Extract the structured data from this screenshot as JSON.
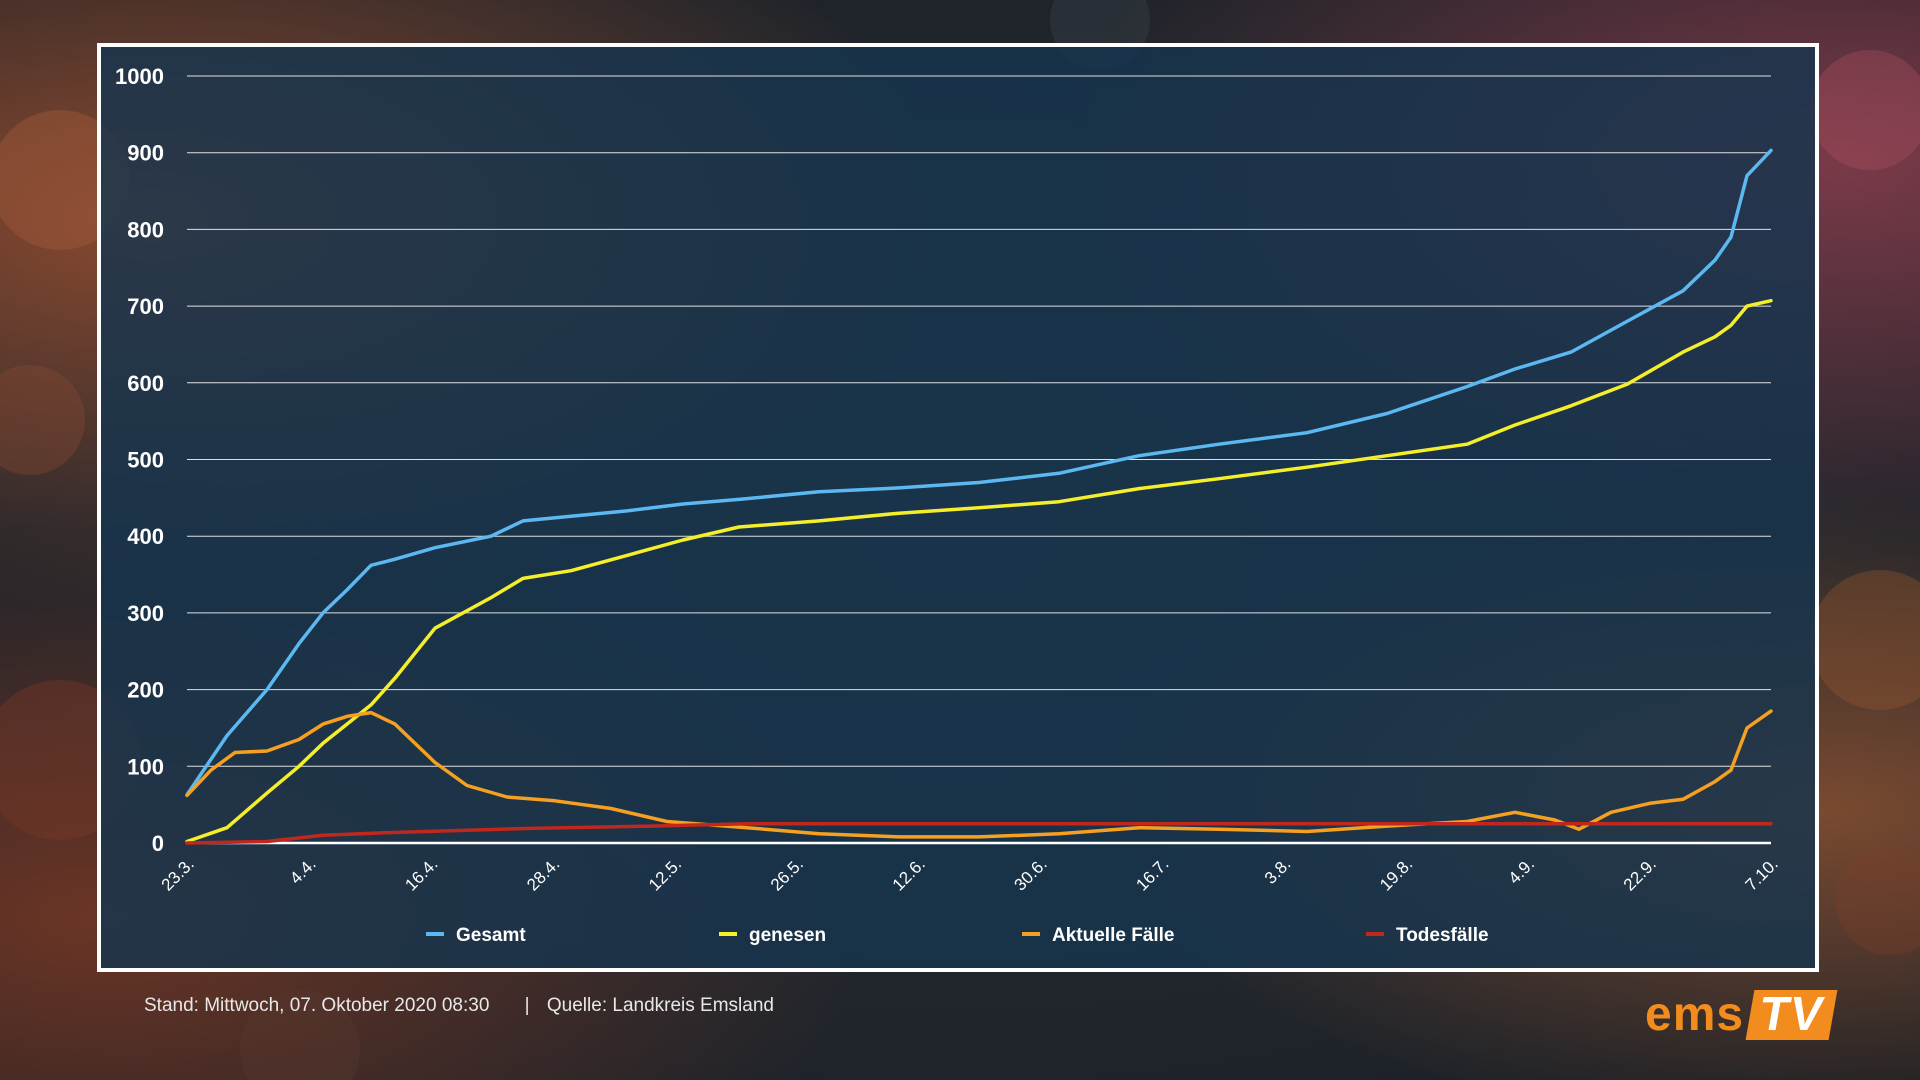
{
  "chart_data": {
    "type": "line",
    "title": "",
    "xlabel": "",
    "ylabel": "",
    "ylim": [
      0,
      1000
    ],
    "yticks": [
      0,
      100,
      200,
      300,
      400,
      500,
      600,
      700,
      800,
      900,
      1000
    ],
    "xtick_labels": [
      "23.3.",
      "4.4.",
      "16.4.",
      "28.4.",
      "12.5.",
      "26.5.",
      "12.6.",
      "30.6.",
      "16.7.",
      "3.8.",
      "19.8.",
      "4.9.",
      "22.9.",
      "7.10."
    ],
    "x_start": "2020-03-23",
    "x_end": "2020-10-07",
    "grid": true,
    "legend_position": "bottom",
    "series": [
      {
        "name": "Gesamt",
        "color": "#5bb8f0",
        "x": [
          "2020-03-23",
          "2020-03-28",
          "2020-04-02",
          "2020-04-06",
          "2020-04-09",
          "2020-04-12",
          "2020-04-15",
          "2020-04-18",
          "2020-04-23",
          "2020-04-30",
          "2020-05-04",
          "2020-05-10",
          "2020-05-17",
          "2020-05-24",
          "2020-05-31",
          "2020-06-10",
          "2020-06-20",
          "2020-06-30",
          "2020-07-10",
          "2020-07-20",
          "2020-07-30",
          "2020-08-10",
          "2020-08-20",
          "2020-08-30",
          "2020-09-05",
          "2020-09-12",
          "2020-09-19",
          "2020-09-26",
          "2020-09-30",
          "2020-10-02",
          "2020-10-04",
          "2020-10-07"
        ],
        "values": [
          63,
          140,
          200,
          260,
          300,
          330,
          362,
          370,
          385,
          400,
          420,
          426,
          433,
          442,
          448,
          458,
          463,
          470,
          482,
          505,
          520,
          535,
          560,
          595,
          618,
          640,
          680,
          720,
          760,
          790,
          870,
          903
        ]
      },
      {
        "name": "genesen",
        "color": "#f5ee2a",
        "x": [
          "2020-03-23",
          "2020-03-28",
          "2020-04-02",
          "2020-04-06",
          "2020-04-09",
          "2020-04-12",
          "2020-04-15",
          "2020-04-18",
          "2020-04-23",
          "2020-04-30",
          "2020-05-04",
          "2020-05-10",
          "2020-05-17",
          "2020-05-24",
          "2020-05-31",
          "2020-06-10",
          "2020-06-20",
          "2020-06-30",
          "2020-07-10",
          "2020-07-20",
          "2020-07-30",
          "2020-08-10",
          "2020-08-20",
          "2020-08-30",
          "2020-09-05",
          "2020-09-12",
          "2020-09-19",
          "2020-09-26",
          "2020-09-30",
          "2020-10-02",
          "2020-10-04",
          "2020-10-07"
        ],
        "values": [
          2,
          20,
          65,
          100,
          130,
          155,
          180,
          215,
          280,
          320,
          345,
          355,
          375,
          395,
          412,
          420,
          430,
          437,
          445,
          462,
          475,
          490,
          505,
          520,
          545,
          570,
          598,
          640,
          660,
          675,
          700,
          707
        ]
      },
      {
        "name": "Aktuelle Fälle",
        "color": "#f5a020",
        "x": [
          "2020-03-23",
          "2020-03-26",
          "2020-03-29",
          "2020-04-02",
          "2020-04-06",
          "2020-04-09",
          "2020-04-12",
          "2020-04-15",
          "2020-04-18",
          "2020-04-20",
          "2020-04-23",
          "2020-04-27",
          "2020-05-02",
          "2020-05-08",
          "2020-05-15",
          "2020-05-22",
          "2020-06-01",
          "2020-06-10",
          "2020-06-20",
          "2020-06-30",
          "2020-07-10",
          "2020-07-20",
          "2020-07-30",
          "2020-08-10",
          "2020-08-20",
          "2020-08-30",
          "2020-09-05",
          "2020-09-10",
          "2020-09-13",
          "2020-09-17",
          "2020-09-22",
          "2020-09-26",
          "2020-09-30",
          "2020-10-02",
          "2020-10-04",
          "2020-10-07"
        ],
        "values": [
          62,
          95,
          118,
          120,
          135,
          155,
          165,
          170,
          155,
          135,
          105,
          75,
          60,
          55,
          45,
          28,
          20,
          12,
          8,
          8,
          12,
          20,
          18,
          15,
          22,
          28,
          40,
          30,
          18,
          40,
          52,
          57,
          80,
          95,
          150,
          172
        ]
      },
      {
        "name": "Todesfälle",
        "color": "#c0281e",
        "x": [
          "2020-03-23",
          "2020-04-02",
          "2020-04-09",
          "2020-04-16",
          "2020-04-25",
          "2020-05-05",
          "2020-05-20",
          "2020-06-01",
          "2020-10-07"
        ],
        "values": [
          0,
          2,
          10,
          13,
          16,
          19,
          22,
          25,
          25
        ]
      }
    ]
  },
  "footer": {
    "stand_label": "Stand:",
    "stand_value": "Mittwoch, 07. Oktober 2020 08:30",
    "separator": "|",
    "source_label": "Quelle:",
    "source_value": "Landkreis Emsland"
  },
  "logo": {
    "part1": "ems",
    "part2": "TV",
    "color": "#f28c1e"
  }
}
